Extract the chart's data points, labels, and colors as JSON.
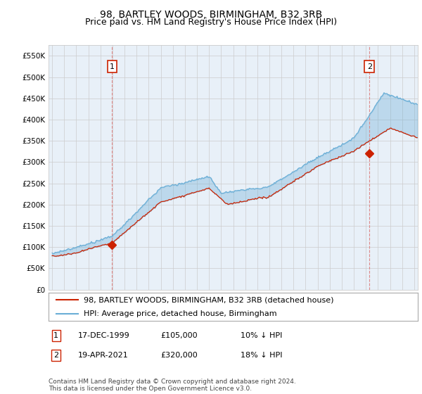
{
  "title": "98, BARTLEY WOODS, BIRMINGHAM, B32 3RB",
  "subtitle": "Price paid vs. HM Land Registry's House Price Index (HPI)",
  "ylim": [
    0,
    575000
  ],
  "yticks": [
    0,
    50000,
    100000,
    150000,
    200000,
    250000,
    300000,
    350000,
    400000,
    450000,
    500000,
    550000
  ],
  "xlim_start": 1994.7,
  "xlim_end": 2025.3,
  "grid_color": "#cccccc",
  "background_color": "#ffffff",
  "plot_bg_color": "#e8f0f8",
  "hpi_color": "#6aaed6",
  "price_color": "#cc2200",
  "vline_color": "#dd8888",
  "sale1_x": 1999.97,
  "sale1_y": 105000,
  "sale1_label": "1",
  "sale2_x": 2021.29,
  "sale2_y": 320000,
  "sale2_label": "2",
  "legend_line1": "98, BARTLEY WOODS, BIRMINGHAM, B32 3RB (detached house)",
  "legend_line2": "HPI: Average price, detached house, Birmingham",
  "annotation1_date": "17-DEC-1999",
  "annotation1_price": "£105,000",
  "annotation1_hpi": "10% ↓ HPI",
  "annotation2_date": "19-APR-2021",
  "annotation2_price": "£320,000",
  "annotation2_hpi": "18% ↓ HPI",
  "footer": "Contains HM Land Registry data © Crown copyright and database right 2024.\nThis data is licensed under the Open Government Licence v3.0.",
  "title_fontsize": 10,
  "subtitle_fontsize": 9,
  "tick_fontsize": 7.5,
  "legend_fontsize": 8,
  "annotation_fontsize": 8,
  "footer_fontsize": 6.5
}
